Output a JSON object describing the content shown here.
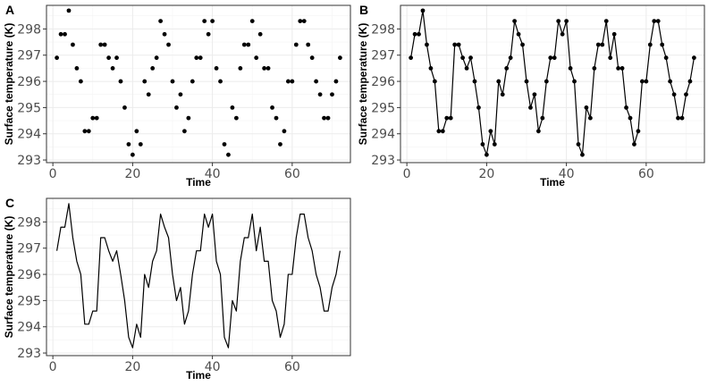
{
  "chart_data": [
    {
      "panel": "A",
      "type": "scatter",
      "xlabel": "Time",
      "ylabel": "Surface temperature (K)",
      "xlim": [
        -1.6,
        74.6
      ],
      "ylim": [
        292.9,
        298.9
      ],
      "xticks": [
        0,
        20,
        40,
        60
      ],
      "yticks": [
        293,
        294,
        295,
        296,
        297,
        298
      ],
      "series": [
        {
          "x": [
            1,
            2,
            3,
            4,
            5,
            6,
            7,
            8,
            9,
            10,
            11,
            12,
            13,
            14,
            15,
            16,
            17,
            18,
            19,
            20,
            21,
            22,
            23,
            24,
            25,
            26,
            27,
            28,
            29,
            30,
            31,
            32,
            33,
            34,
            35,
            36,
            37,
            38,
            39,
            40,
            41,
            42,
            43,
            44,
            45,
            46,
            47,
            48,
            49,
            50,
            51,
            52,
            53,
            54,
            55,
            56,
            57,
            58,
            59,
            60,
            61,
            62,
            63,
            64,
            65,
            66,
            67,
            68,
            69,
            70,
            71,
            72
          ],
          "y": [
            296.9,
            297.8,
            297.8,
            298.7,
            297.4,
            296.5,
            296.0,
            294.1,
            294.1,
            294.6,
            294.6,
            297.4,
            297.4,
            296.9,
            296.5,
            296.9,
            296.0,
            295.0,
            293.6,
            293.2,
            294.1,
            293.6,
            296.0,
            295.5,
            296.5,
            296.9,
            298.3,
            297.8,
            297.4,
            296.0,
            295.0,
            295.5,
            294.1,
            294.6,
            296.0,
            296.9,
            296.9,
            298.3,
            297.8,
            298.3,
            296.5,
            296.0,
            293.6,
            293.2,
            295.0,
            294.6,
            296.5,
            297.4,
            297.4,
            298.3,
            296.9,
            297.8,
            296.5,
            296.5,
            295.0,
            294.6,
            293.6,
            294.1,
            296.0,
            296.0,
            297.4,
            298.3,
            298.3,
            297.4,
            296.9,
            296.0,
            295.5,
            294.6,
            294.6,
            295.5,
            296.0,
            296.9
          ]
        }
      ]
    },
    {
      "panel": "B",
      "type": "line",
      "markers": true,
      "xlabel": "Time",
      "ylabel": "Surface temperature (K)",
      "xlim": [
        -1.6,
        74.6
      ],
      "ylim": [
        292.9,
        298.9
      ],
      "xticks": [
        0,
        20,
        40,
        60
      ],
      "yticks": [
        293,
        294,
        295,
        296,
        297,
        298
      ],
      "series": [
        {
          "x": [
            1,
            2,
            3,
            4,
            5,
            6,
            7,
            8,
            9,
            10,
            11,
            12,
            13,
            14,
            15,
            16,
            17,
            18,
            19,
            20,
            21,
            22,
            23,
            24,
            25,
            26,
            27,
            28,
            29,
            30,
            31,
            32,
            33,
            34,
            35,
            36,
            37,
            38,
            39,
            40,
            41,
            42,
            43,
            44,
            45,
            46,
            47,
            48,
            49,
            50,
            51,
            52,
            53,
            54,
            55,
            56,
            57,
            58,
            59,
            60,
            61,
            62,
            63,
            64,
            65,
            66,
            67,
            68,
            69,
            70,
            71,
            72
          ],
          "y": [
            296.9,
            297.8,
            297.8,
            298.7,
            297.4,
            296.5,
            296.0,
            294.1,
            294.1,
            294.6,
            294.6,
            297.4,
            297.4,
            296.9,
            296.5,
            296.9,
            296.0,
            295.0,
            293.6,
            293.2,
            294.1,
            293.6,
            296.0,
            295.5,
            296.5,
            296.9,
            298.3,
            297.8,
            297.4,
            296.0,
            295.0,
            295.5,
            294.1,
            294.6,
            296.0,
            296.9,
            296.9,
            298.3,
            297.8,
            298.3,
            296.5,
            296.0,
            293.6,
            293.2,
            295.0,
            294.6,
            296.5,
            297.4,
            297.4,
            298.3,
            296.9,
            297.8,
            296.5,
            296.5,
            295.0,
            294.6,
            293.6,
            294.1,
            296.0,
            296.0,
            297.4,
            298.3,
            298.3,
            297.4,
            296.9,
            296.0,
            295.5,
            294.6,
            294.6,
            295.5,
            296.0,
            296.9
          ]
        }
      ]
    },
    {
      "panel": "C",
      "type": "line",
      "markers": false,
      "xlabel": "Time",
      "ylabel": "Surface temperature (K)",
      "xlim": [
        -1.6,
        74.6
      ],
      "ylim": [
        292.9,
        298.9
      ],
      "xticks": [
        0,
        20,
        40,
        60
      ],
      "yticks": [
        293,
        294,
        295,
        296,
        297,
        298
      ],
      "series": [
        {
          "x": [
            1,
            2,
            3,
            4,
            5,
            6,
            7,
            8,
            9,
            10,
            11,
            12,
            13,
            14,
            15,
            16,
            17,
            18,
            19,
            20,
            21,
            22,
            23,
            24,
            25,
            26,
            27,
            28,
            29,
            30,
            31,
            32,
            33,
            34,
            35,
            36,
            37,
            38,
            39,
            40,
            41,
            42,
            43,
            44,
            45,
            46,
            47,
            48,
            49,
            50,
            51,
            52,
            53,
            54,
            55,
            56,
            57,
            58,
            59,
            60,
            61,
            62,
            63,
            64,
            65,
            66,
            67,
            68,
            69,
            70,
            71,
            72
          ],
          "y": [
            296.9,
            297.8,
            297.8,
            298.7,
            297.4,
            296.5,
            296.0,
            294.1,
            294.1,
            294.6,
            294.6,
            297.4,
            297.4,
            296.9,
            296.5,
            296.9,
            296.0,
            295.0,
            293.6,
            293.2,
            294.1,
            293.6,
            296.0,
            295.5,
            296.5,
            296.9,
            298.3,
            297.8,
            297.4,
            296.0,
            295.0,
            295.5,
            294.1,
            294.6,
            296.0,
            296.9,
            296.9,
            298.3,
            297.8,
            298.3,
            296.5,
            296.0,
            293.6,
            293.2,
            295.0,
            294.6,
            296.5,
            297.4,
            297.4,
            298.3,
            296.9,
            297.8,
            296.5,
            296.5,
            295.0,
            294.6,
            293.6,
            294.1,
            296.0,
            296.0,
            297.4,
            298.3,
            298.3,
            297.4,
            296.9,
            296.0,
            295.5,
            294.6,
            294.6,
            295.5,
            296.0,
            296.9
          ]
        }
      ]
    }
  ],
  "colors": {
    "ink": "#000000",
    "grid": "#ebebeb",
    "border": "#333333",
    "tick_text": "#4d4d4d"
  }
}
